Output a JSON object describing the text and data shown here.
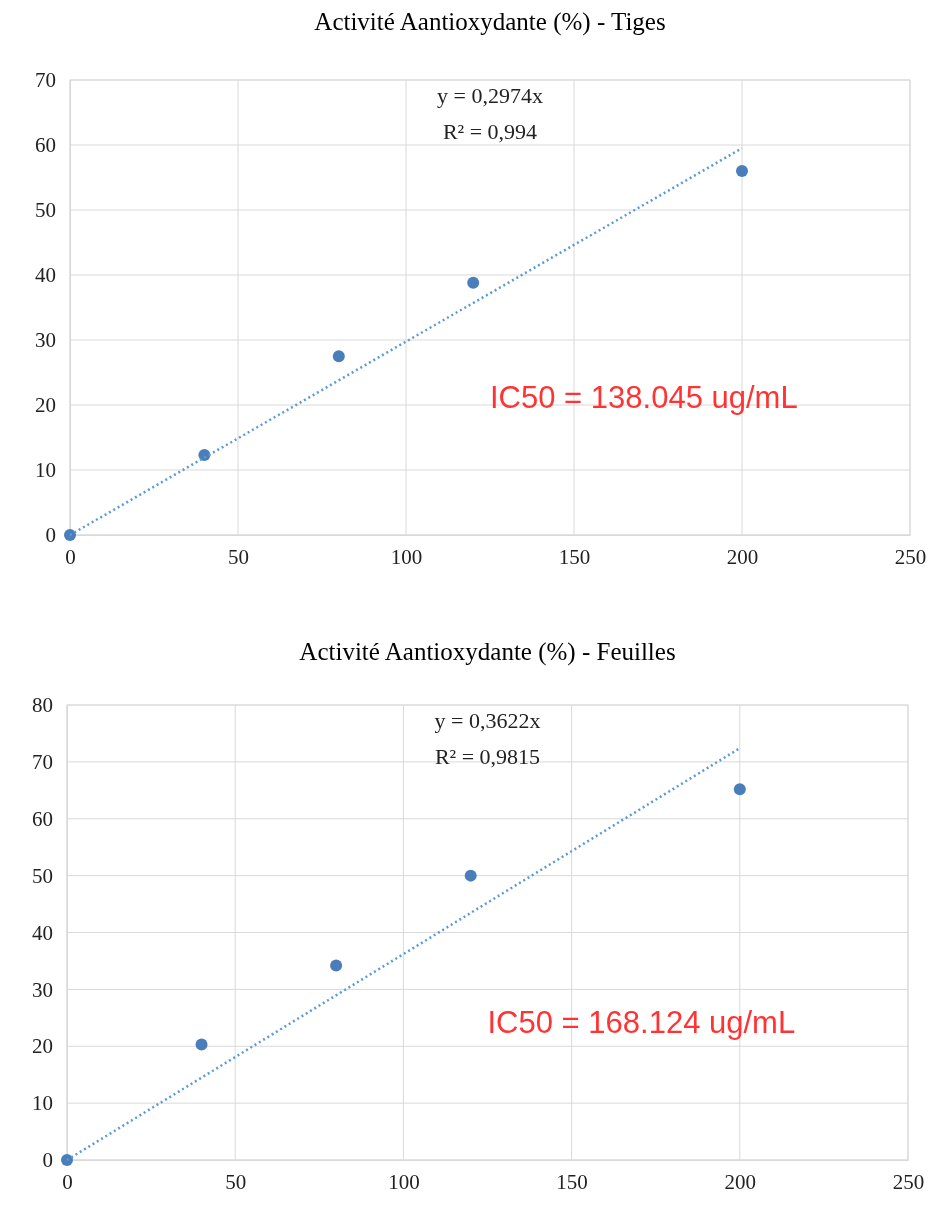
{
  "chart_data": [
    {
      "type": "scatter",
      "title": "Activité  Aantioxydante  (%) - Tiges",
      "xlim": [
        0,
        250
      ],
      "xticks": [
        0,
        50,
        100,
        150,
        200,
        250
      ],
      "ylim": [
        0,
        70
      ],
      "yticks": [
        0,
        10,
        20,
        30,
        40,
        50,
        60,
        70
      ],
      "grid": true,
      "series": [
        {
          "color": "#4a7ebb",
          "x": [
            0,
            40,
            80,
            120,
            200
          ],
          "values": [
            0,
            12.3,
            27.5,
            38.8,
            56
          ],
          "marker": "circle"
        },
        {
          "type": "line",
          "color": "#5b9bd5",
          "x": [
            0,
            200
          ],
          "values": [
            0,
            59.5
          ],
          "line_style": "dotted"
        }
      ],
      "annotations": [
        "y = 0,2974x",
        "R² = 0,994",
        "IC50 = 138.045  ug/mL"
      ]
    },
    {
      "type": "scatter",
      "title": "Activité  Aantioxydante  (%) - Feuilles",
      "xlim": [
        0,
        250
      ],
      "xticks": [
        0,
        50,
        100,
        150,
        200,
        250
      ],
      "ylim": [
        0,
        80
      ],
      "yticks": [
        0,
        10,
        20,
        30,
        40,
        50,
        60,
        70,
        80
      ],
      "grid": true,
      "series": [
        {
          "color": "#4a7ebb",
          "x": [
            0,
            40,
            80,
            120,
            200
          ],
          "values": [
            0,
            20.3,
            34.2,
            50,
            65.2
          ],
          "marker": "circle"
        },
        {
          "type": "line",
          "color": "#5b9bd5",
          "x": [
            0,
            200
          ],
          "values": [
            0,
            72.4
          ],
          "line_style": "dotted"
        }
      ],
      "annotations": [
        "y = 0,3622x",
        "R² = 0,9815",
        "IC50 = 168.124 ug/mL"
      ]
    }
  ]
}
